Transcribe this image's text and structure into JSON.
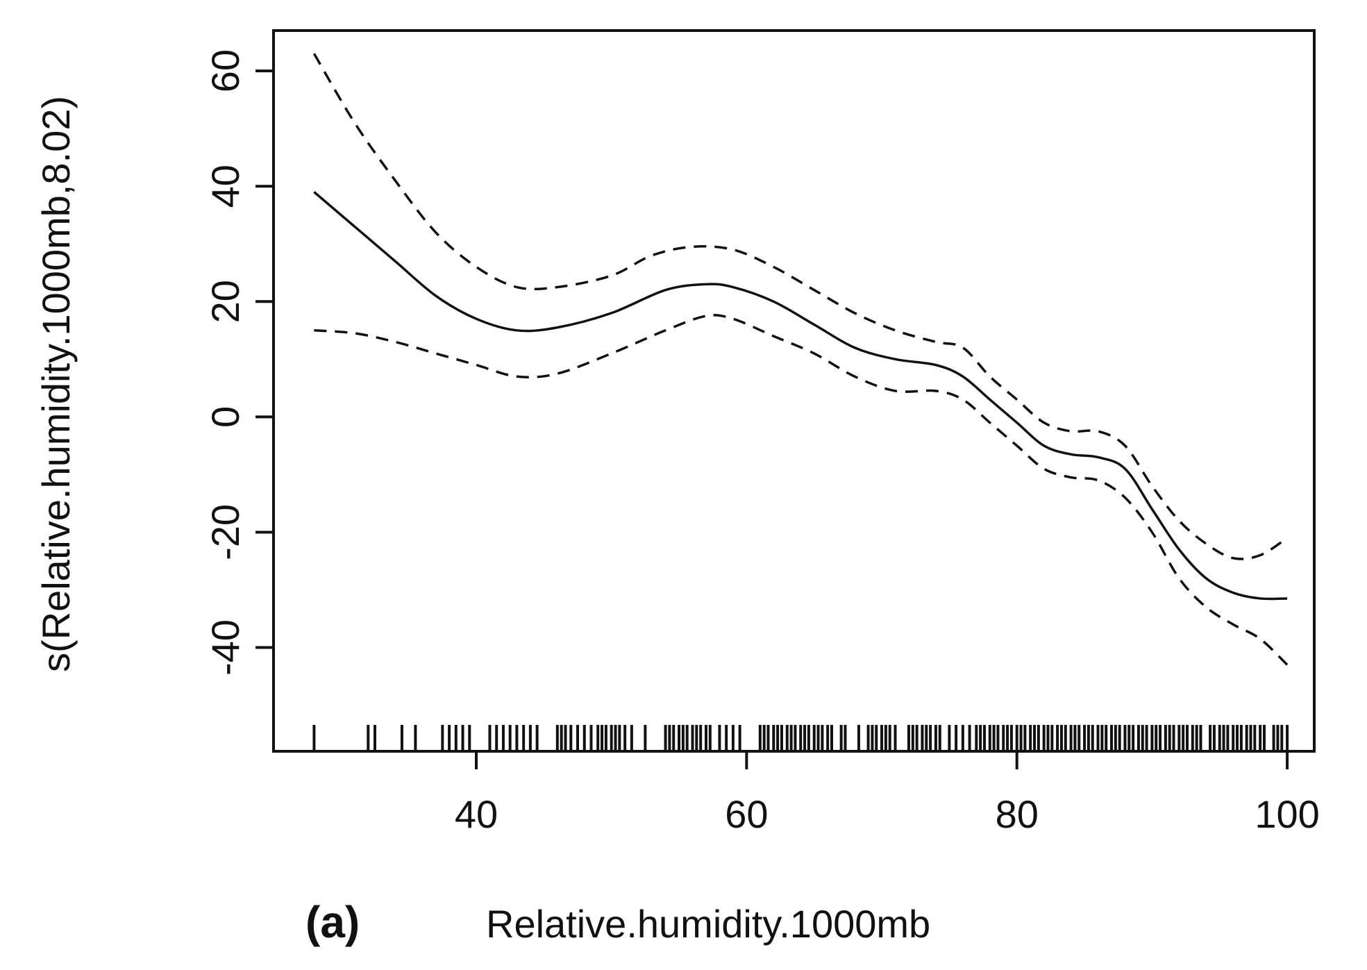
{
  "chart_data": {
    "type": "line",
    "panel_label": "(a)",
    "xlabel": "Relative.humidity.1000mb",
    "ylabel": "s(Relative.humidity.1000mb,8.02)",
    "xlim": [
      25,
      102
    ],
    "ylim": [
      -58,
      67
    ],
    "xticks": [
      40,
      60,
      80,
      100
    ],
    "yticks": [
      -40,
      -20,
      0,
      20,
      40,
      60
    ],
    "grid": false,
    "series": [
      {
        "name": "fit",
        "style": "solid",
        "x": [
          28,
          31,
          34,
          37,
          40,
          43,
          46,
          50,
          54,
          57,
          59,
          62,
          65,
          68,
          71,
          74,
          76,
          78,
          80,
          82,
          84,
          86,
          88,
          90,
          92,
          94,
          96,
          98,
          100
        ],
        "y": [
          39,
          33,
          27,
          21,
          17,
          15,
          15.5,
          18,
          22,
          23,
          22.5,
          20,
          16,
          12,
          10,
          9,
          7,
          3,
          -1,
          -5,
          -6.5,
          -7,
          -9,
          -16,
          -23,
          -28,
          -30.5,
          -31.5,
          -31.5
        ]
      },
      {
        "name": "upper-ci",
        "style": "dashed",
        "x": [
          28,
          31,
          34,
          37,
          40,
          43,
          46,
          50,
          53,
          56,
          59,
          62,
          65,
          68,
          71,
          74,
          76,
          78,
          80,
          82,
          84,
          86,
          88,
          90,
          92,
          94,
          96,
          98,
          100
        ],
        "y": [
          63,
          51,
          41,
          32,
          26,
          22.5,
          22.5,
          24.5,
          28,
          29.5,
          29,
          26,
          22,
          18,
          15,
          13,
          12,
          7,
          3,
          -1,
          -2.5,
          -2.5,
          -5,
          -12,
          -18,
          -22,
          -24.5,
          -24,
          -21
        ]
      },
      {
        "name": "lower-ci",
        "style": "dashed",
        "x": [
          28,
          31,
          34,
          37,
          40,
          43,
          46,
          50,
          54,
          57,
          59,
          62,
          65,
          68,
          71,
          74,
          76,
          78,
          80,
          82,
          84,
          86,
          88,
          90,
          92,
          94,
          96,
          98,
          100
        ],
        "y": [
          15,
          14.5,
          13,
          11,
          9,
          7,
          7.5,
          11,
          15,
          17.5,
          17,
          14,
          11,
          7,
          4.5,
          4.5,
          3,
          -1,
          -5,
          -9,
          -10.5,
          -11,
          -14,
          -20,
          -28,
          -33,
          -36,
          -38.5,
          -43
        ]
      }
    ],
    "rug": [
      28,
      32,
      32.5,
      34.5,
      35.5,
      37.5,
      38,
      38.5,
      39,
      39.5,
      41,
      41.5,
      42,
      42.5,
      43,
      43.5,
      44,
      44.5,
      46,
      46.3,
      46.6,
      47,
      47.5,
      48,
      48.5,
      49,
      49.3,
      49.6,
      50,
      50.3,
      50.6,
      51,
      51.5,
      52.5,
      54,
      54.3,
      54.6,
      55,
      55.3,
      55.6,
      56,
      56.3,
      56.6,
      57,
      57.3,
      58,
      58.5,
      59,
      59.5,
      61,
      61.3,
      61.6,
      62,
      62.3,
      62.6,
      63,
      63.3,
      63.6,
      64,
      64.3,
      64.6,
      65,
      65.3,
      65.6,
      66,
      66.3,
      67,
      67.3,
      68.3,
      69,
      69.3,
      69.6,
      70,
      70.3,
      70.6,
      71,
      72,
      72.3,
      72.6,
      73,
      73.3,
      73.6,
      74,
      74.3,
      75,
      75.5,
      76,
      76.5,
      77,
      77.3,
      77.6,
      78,
      78.3,
      78.6,
      79,
      79.3,
      79.6,
      80,
      80.3,
      80.6,
      81,
      81.3,
      81.6,
      82,
      82.3,
      82.6,
      83,
      83.3,
      83.6,
      84,
      84.3,
      84.6,
      85,
      85.3,
      85.6,
      86,
      86.3,
      86.6,
      87,
      87.3,
      87.6,
      88,
      88.3,
      88.6,
      89,
      89.3,
      89.6,
      90,
      90.3,
      90.6,
      91,
      91.3,
      91.6,
      92,
      92.3,
      92.6,
      93,
      93.3,
      93.6,
      94.3,
      94.6,
      95,
      95.3,
      95.6,
      96,
      96.3,
      96.6,
      97,
      97.3,
      97.6,
      98,
      98.3,
      99,
      99.3,
      99.6,
      100
    ]
  }
}
